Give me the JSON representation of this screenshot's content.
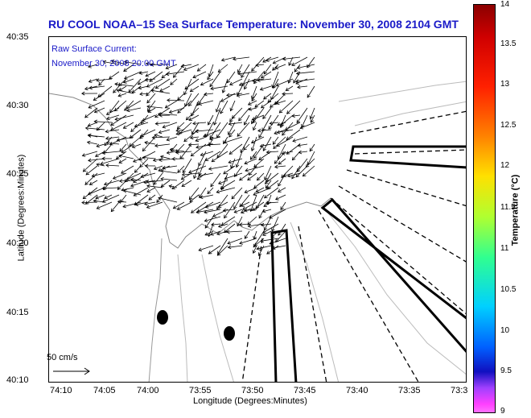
{
  "title": "RU COOL  NOAA–15  Sea Surface Temperature:  November 30, 2008 2104 GMT",
  "overlay": {
    "line1": "Raw Surface Current:",
    "line2": "November 30, 2008 20:00 GMT"
  },
  "axes": {
    "xlabel": "Longitude (Degrees:Minutes)",
    "ylabel": "Latitude (Degrees:Minutes)",
    "xticks": [
      "74:10",
      "74:05",
      "74:00",
      "73:55",
      "73:50",
      "73:45",
      "73:40",
      "73:35",
      "73:3"
    ],
    "yticks": [
      "40:35",
      "40:30",
      "40:25",
      "40:20",
      "40:15",
      "40:10"
    ]
  },
  "scale_label": "50 cm/s",
  "colorbar": {
    "label": "Temperature (°C)",
    "ticks": [
      "14",
      "13.5",
      "13",
      "12.5",
      "12",
      "11.5",
      "11",
      "10.5",
      "10",
      "9.5",
      "9"
    ]
  },
  "colors": {
    "title": "#1a1ac8"
  }
}
